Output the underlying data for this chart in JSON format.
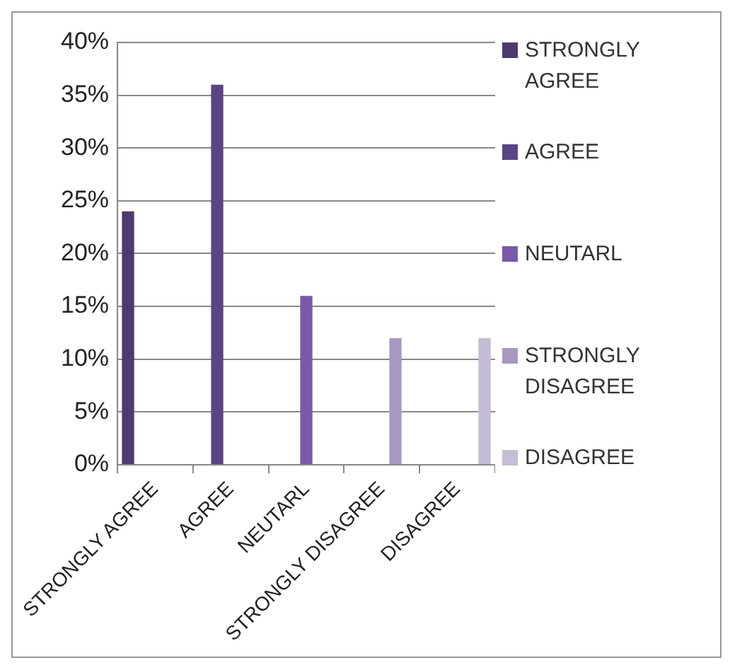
{
  "chart_data": {
    "type": "bar",
    "categories": [
      "STRONGLY AGREE",
      "AGREE",
      "NEUTARL",
      "STRONGLY DISAGREE",
      "DISAGREE"
    ],
    "series": [
      {
        "name": "STRONGLY AGREE",
        "color": "#4f3a6e",
        "values": [
          24,
          null,
          null,
          null,
          null
        ]
      },
      {
        "name": "AGREE",
        "color": "#5b4485",
        "values": [
          null,
          36,
          null,
          null,
          null
        ]
      },
      {
        "name": "NEUTARL",
        "color": "#7a5aa8",
        "values": [
          null,
          null,
          16,
          null,
          null
        ]
      },
      {
        "name": "STRONGLY DISAGREE",
        "color": "#a898c0",
        "values": [
          null,
          null,
          null,
          12,
          null
        ]
      },
      {
        "name": "DISAGREE",
        "color": "#c5bdd3",
        "values": [
          null,
          null,
          null,
          null,
          12
        ]
      }
    ],
    "ylim": [
      0,
      40
    ],
    "yticks": [
      {
        "value": 0,
        "label": "0%"
      },
      {
        "value": 5,
        "label": "5%"
      },
      {
        "value": 10,
        "label": "10%"
      },
      {
        "value": 15,
        "label": "15%"
      },
      {
        "value": 20,
        "label": "20%"
      },
      {
        "value": 25,
        "label": "25%"
      },
      {
        "value": 30,
        "label": "30%"
      },
      {
        "value": 35,
        "label": "35%"
      },
      {
        "value": 40,
        "label": "40%"
      }
    ],
    "grid": "y",
    "legend": "right"
  }
}
